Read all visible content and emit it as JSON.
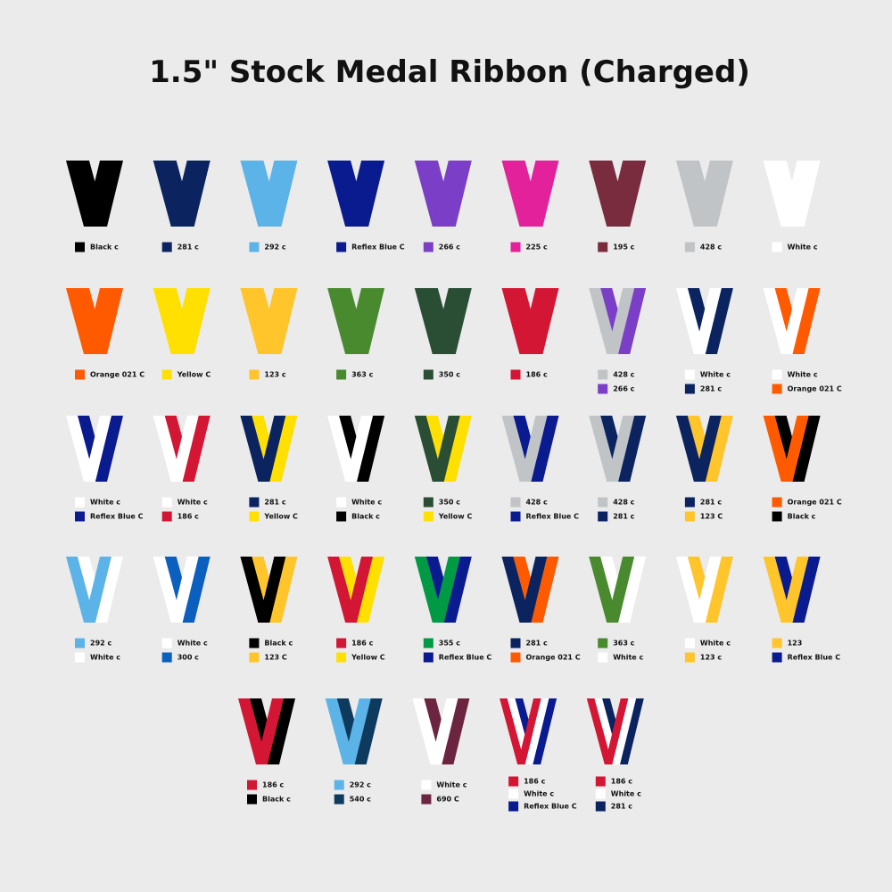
{
  "title": "1.5\" Stock Medal Ribbon (Charged)",
  "rows": [
    [
      {
        "swatches": [
          {
            "label": "Black c",
            "color": "#000000"
          }
        ]
      },
      {
        "swatches": [
          {
            "label": "281 c",
            "color": "#0b2460"
          }
        ]
      },
      {
        "swatches": [
          {
            "label": "292  c",
            "color": "#5cb3e8"
          }
        ]
      },
      {
        "swatches": [
          {
            "label": "Reflex Blue C",
            "color": "#0a1a8f"
          }
        ]
      },
      {
        "swatches": [
          {
            "label": "266 c",
            "color": "#7a3fc6"
          }
        ]
      },
      {
        "swatches": [
          {
            "label": "225 c",
            "color": "#e2219b"
          }
        ]
      },
      {
        "swatches": [
          {
            "label": "195 c",
            "color": "#7a2c3f"
          }
        ]
      },
      {
        "swatches": [
          {
            "label": "428 c",
            "color": "#c1c4c7"
          }
        ]
      },
      {
        "swatches": [
          {
            "label": "White c",
            "color": "#ffffff"
          }
        ]
      }
    ],
    [
      {
        "swatches": [
          {
            "label": "Orange 021 C",
            "color": "#ff5a00"
          }
        ]
      },
      {
        "swatches": [
          {
            "label": "Yellow C",
            "color": "#ffe000"
          }
        ]
      },
      {
        "swatches": [
          {
            "label": "123 c",
            "color": "#ffc52b"
          }
        ]
      },
      {
        "swatches": [
          {
            "label": "363 c",
            "color": "#4a8a2f"
          }
        ]
      },
      {
        "swatches": [
          {
            "label": "350 c",
            "color": "#2a4e34"
          }
        ]
      },
      {
        "swatches": [
          {
            "label": "186 c",
            "color": "#d31634"
          }
        ]
      },
      {
        "swatches": [
          {
            "label": "428 c",
            "color": "#c1c4c7"
          },
          {
            "label": "266 c",
            "color": "#7a3fc6"
          }
        ]
      },
      {
        "swatches": [
          {
            "label": "White c",
            "color": "#ffffff"
          },
          {
            "label": "281 c",
            "color": "#0b2460"
          }
        ]
      },
      {
        "swatches": [
          {
            "label": "White c",
            "color": "#ffffff"
          },
          {
            "label": "Orange 021 C",
            "color": "#ff5a00"
          }
        ]
      }
    ],
    [
      {
        "swatches": [
          {
            "label": "White c",
            "color": "#ffffff"
          },
          {
            "label": "Reflex Blue C",
            "color": "#0a1a8f"
          }
        ]
      },
      {
        "swatches": [
          {
            "label": "White c",
            "color": "#ffffff"
          },
          {
            "label": "186 c",
            "color": "#d31634"
          }
        ]
      },
      {
        "swatches": [
          {
            "label": "281 c",
            "color": "#0b2460"
          },
          {
            "label": "Yellow C",
            "color": "#ffe000"
          }
        ]
      },
      {
        "swatches": [
          {
            "label": "White  c",
            "color": "#ffffff"
          },
          {
            "label": "Black c",
            "color": "#000000"
          }
        ]
      },
      {
        "swatches": [
          {
            "label": "350 c",
            "color": "#2a4e34"
          },
          {
            "label": "Yellow C",
            "color": "#ffe000"
          }
        ]
      },
      {
        "swatches": [
          {
            "label": "428 c",
            "color": "#c1c4c7"
          },
          {
            "label": "Reflex Blue C",
            "color": "#0a1a8f"
          }
        ]
      },
      {
        "swatches": [
          {
            "label": "428 c",
            "color": "#c1c4c7"
          },
          {
            "label": "281 c",
            "color": "#0b2460"
          }
        ]
      },
      {
        "swatches": [
          {
            "label": "281 c",
            "color": "#0b2460"
          },
          {
            "label": "123 C",
            "color": "#ffc52b"
          }
        ]
      },
      {
        "swatches": [
          {
            "label": "Orange 021 C",
            "color": "#ff5a00"
          },
          {
            "label": "Black c",
            "color": "#000000"
          }
        ]
      }
    ],
    [
      {
        "swatches": [
          {
            "label": "292 c",
            "color": "#5cb3e8"
          },
          {
            "label": "White c",
            "color": "#ffffff"
          }
        ]
      },
      {
        "swatches": [
          {
            "label": "White c",
            "color": "#ffffff"
          },
          {
            "label": "300 c",
            "color": "#0a5fbf"
          }
        ]
      },
      {
        "swatches": [
          {
            "label": "Black c",
            "color": "#000000"
          },
          {
            "label": "123 C",
            "color": "#ffc52b"
          }
        ]
      },
      {
        "swatches": [
          {
            "label": "186 c",
            "color": "#d31634"
          },
          {
            "label": "Yellow C",
            "color": "#ffe000"
          }
        ]
      },
      {
        "swatches": [
          {
            "label": "355 c",
            "color": "#009a44"
          },
          {
            "label": "Reflex Blue C",
            "color": "#0a1a8f"
          }
        ]
      },
      {
        "swatches": [
          {
            "label": "281 c",
            "color": "#0b2460"
          },
          {
            "label": "Orange 021 C",
            "color": "#ff5a00"
          }
        ]
      },
      {
        "swatches": [
          {
            "label": "363 c",
            "color": "#4a8a2f"
          },
          {
            "label": "White c",
            "color": "#ffffff"
          }
        ]
      },
      {
        "swatches": [
          {
            "label": "White c",
            "color": "#ffffff"
          },
          {
            "label": "123 c",
            "color": "#ffc52b"
          }
        ]
      },
      {
        "swatches": [
          {
            "label": "123",
            "color": "#ffc52b"
          },
          {
            "label": "Reflex Blue C",
            "color": "#0a1a8f"
          }
        ]
      }
    ],
    [
      {
        "swatches": [
          {
            "label": "186 c",
            "color": "#d31634"
          },
          {
            "label": "Black c",
            "color": "#000000"
          }
        ]
      },
      {
        "swatches": [
          {
            "label": "292 c",
            "color": "#5cb3e8"
          },
          {
            "label": "540 c",
            "color": "#0e3a5e"
          }
        ]
      },
      {
        "swatches": [
          {
            "label": "White c",
            "color": "#ffffff"
          },
          {
            "label": "690 C",
            "color": "#6b2540"
          }
        ]
      },
      {
        "swatches": [
          {
            "label": "186 c",
            "color": "#d31634"
          },
          {
            "label": "White c",
            "color": "#ffffff"
          },
          {
            "label": "Reflex Blue C",
            "color": "#0a1a8f"
          }
        ]
      },
      {
        "swatches": [
          {
            "label": "186 c",
            "color": "#d31634"
          },
          {
            "label": "White c",
            "color": "#ffffff"
          },
          {
            "label": "281 c",
            "color": "#0b2460"
          }
        ]
      }
    ]
  ]
}
